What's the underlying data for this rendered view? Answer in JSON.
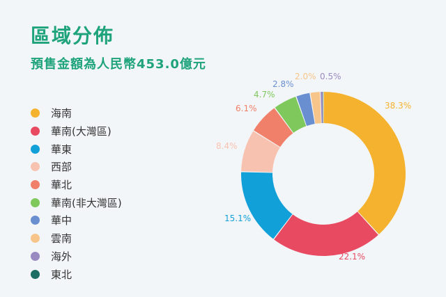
{
  "title": "區域分佈",
  "subtitle": "預售金額為人民幣453.0億元",
  "chart_data": {
    "type": "pie",
    "categories": [
      "海南",
      "華南(大灣區)",
      "華東",
      "西部",
      "華北",
      "華南(非大灣區)",
      "華中",
      "雲南",
      "海外",
      "東北"
    ],
    "values": [
      38.3,
      22.1,
      15.1,
      8.4,
      6.1,
      4.7,
      2.8,
      2.0,
      0.5,
      0.1
    ],
    "data_labels": [
      "38.3%",
      "22.1%",
      "15.1%",
      "8.4%",
      "6.1%",
      "4.7%",
      "2.8%",
      "2.0%",
      "0.5%",
      ""
    ],
    "colors": [
      "#f5b22e",
      "#e84a62",
      "#12a0d9",
      "#f8c2b0",
      "#f0806a",
      "#7ec85c",
      "#6a8fd0",
      "#f7c58a",
      "#9a8ac2",
      "#1a6e64"
    ],
    "legend_position": "left",
    "donut": true
  }
}
